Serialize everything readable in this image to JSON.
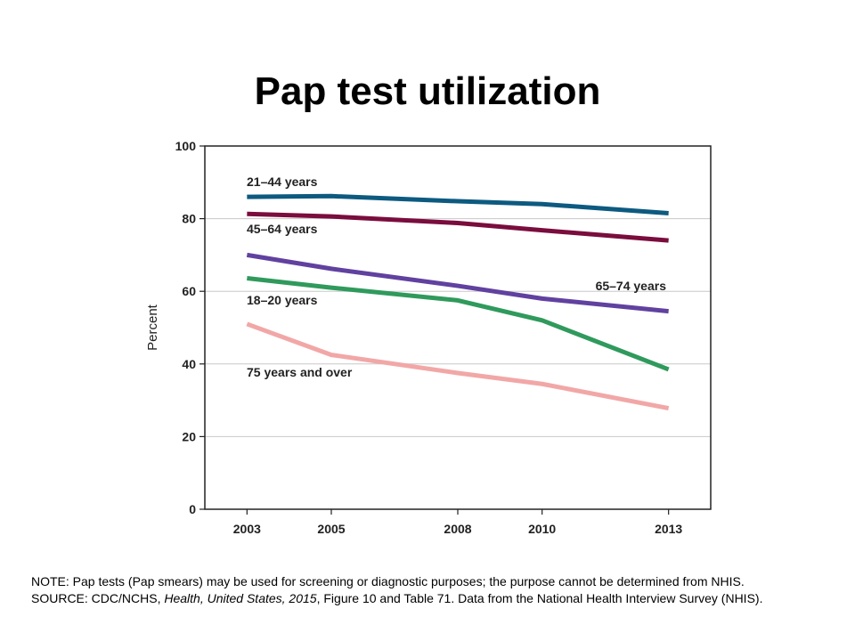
{
  "title": "Pap test utilization",
  "note": {
    "note_text": "NOTE: Pap tests (Pap smears) may be used for screening or diagnostic purposes; the purpose cannot be determined from NHIS.",
    "source_prefix": "SOURCE: CDC/NCHS, ",
    "source_italic": "Health, United States, 2015",
    "source_suffix": ", Figure 10 and Table 71. Data from the National Health Interview Survey (NHIS)."
  },
  "chart_data": {
    "type": "line",
    "title": "Pap test utilization",
    "xlabel": "",
    "ylabel": "Percent",
    "x": [
      2003,
      2005,
      2008,
      2010,
      2013
    ],
    "x_tick_labels": [
      "2003",
      "2005",
      "2008",
      "2010",
      "2013"
    ],
    "xlim": [
      2002,
      2014
    ],
    "ylim": [
      0,
      100
    ],
    "y_ticks": [
      0,
      20,
      40,
      60,
      80,
      100
    ],
    "grid": true,
    "series": [
      {
        "name": "21–44 years",
        "color": "#0d5a80",
        "values": [
          86.0,
          86.2,
          84.8,
          84.0,
          81.5
        ]
      },
      {
        "name": "45–64 years",
        "color": "#7a0d3d",
        "values": [
          81.3,
          80.6,
          78.8,
          76.8,
          74.0
        ]
      },
      {
        "name": "65–74 years",
        "color": "#6141a0",
        "values": [
          70.0,
          66.2,
          61.5,
          58.0,
          54.5
        ]
      },
      {
        "name": "18–20 years",
        "color": "#2f9a5c",
        "values": [
          63.6,
          61.0,
          57.5,
          52.0,
          38.5
        ]
      },
      {
        "name": "75 years and over",
        "color": "#f2a7a7",
        "values": [
          51.0,
          42.5,
          37.5,
          34.5,
          27.8
        ]
      }
    ]
  }
}
